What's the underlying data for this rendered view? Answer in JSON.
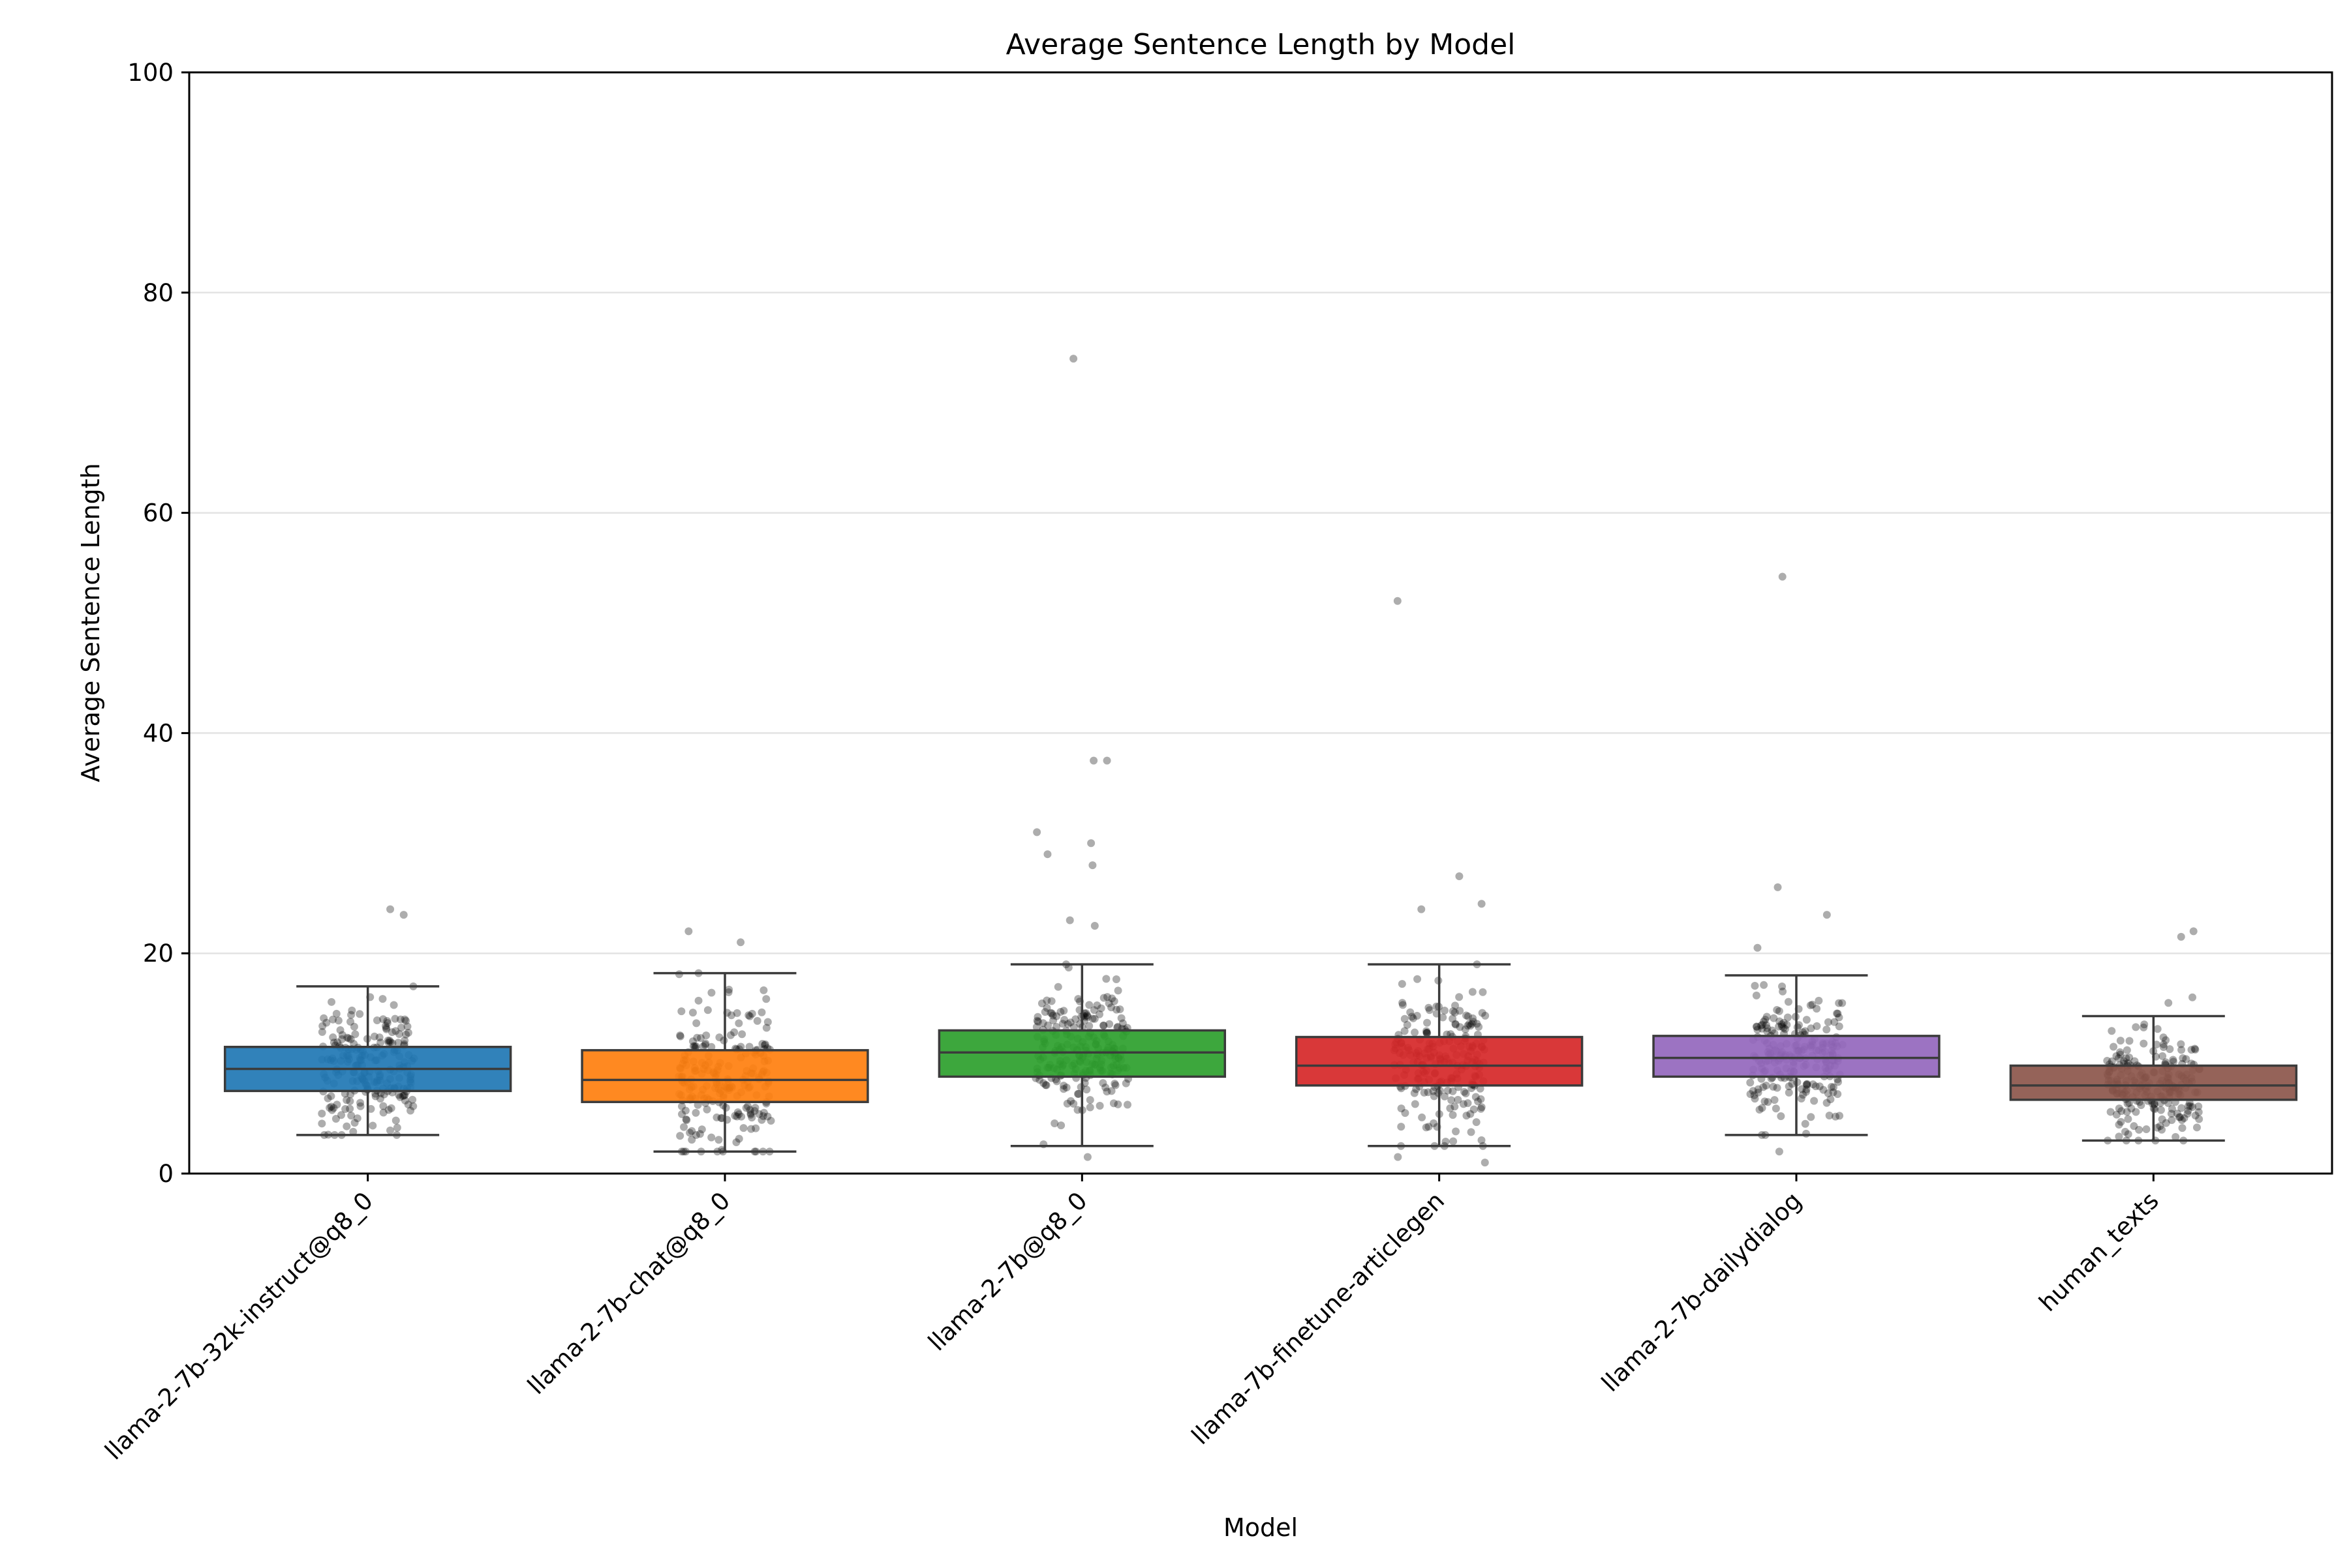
{
  "chart_data": {
    "type": "box",
    "title": "Average Sentence Length by Model",
    "xlabel": "Model",
    "ylabel": "Average Sentence Length",
    "ylim": [
      0,
      100
    ],
    "yticks": [
      0,
      20,
      40,
      60,
      80,
      100
    ],
    "ytick_labels": [
      "0",
      "20",
      "40",
      "60",
      "80",
      "100"
    ],
    "grid": "horizontal",
    "categories": [
      "llama-2-7b-32k-instruct@q8_0",
      "llama-2-7b-chat@q8_0",
      "llama-2-7b@q8_0",
      "llama-7b-finetune-articlegen",
      "llama-2-7b-dailydialog",
      "human_texts"
    ],
    "series": [
      {
        "name": "llama-2-7b-32k-instruct@q8_0",
        "color": "#1f77b4",
        "whisker_low": 3.5,
        "q1": 7.5,
        "median": 9.5,
        "q3": 11.5,
        "whisker_high": 17.0,
        "outliers": [
          23.5,
          24.0
        ]
      },
      {
        "name": "llama-2-7b-chat@q8_0",
        "color": "#ff7f0e",
        "whisker_low": 2.0,
        "q1": 6.5,
        "median": 8.5,
        "q3": 11.2,
        "whisker_high": 18.2,
        "outliers": [
          21.0,
          22.0
        ]
      },
      {
        "name": "llama-2-7b@q8_0",
        "color": "#2ca02c",
        "whisker_low": 2.5,
        "q1": 8.8,
        "median": 11.0,
        "q3": 13.0,
        "whisker_high": 19.0,
        "outliers": [
          1.5,
          22.5,
          23.0,
          28.0,
          29.0,
          30.0,
          31.0,
          37.5,
          37.5,
          74.0
        ]
      },
      {
        "name": "llama-7b-finetune-articlegen",
        "color": "#d62728",
        "whisker_low": 2.5,
        "q1": 8.0,
        "median": 9.8,
        "q3": 12.4,
        "whisker_high": 19.0,
        "outliers": [
          1.0,
          1.5,
          24.0,
          24.5,
          27.0,
          52.0
        ]
      },
      {
        "name": "llama-2-7b-dailydialog",
        "color": "#9467bd",
        "whisker_low": 3.5,
        "q1": 8.8,
        "median": 10.5,
        "q3": 12.5,
        "whisker_high": 18.0,
        "outliers": [
          2.0,
          20.5,
          23.5,
          26.0,
          54.2
        ]
      },
      {
        "name": "human_texts",
        "color": "#8c564b",
        "whisker_low": 3.0,
        "q1": 6.7,
        "median": 8.0,
        "q3": 9.8,
        "whisker_high": 14.3,
        "outliers": [
          15.5,
          16.0,
          21.5,
          22.0
        ]
      }
    ]
  }
}
